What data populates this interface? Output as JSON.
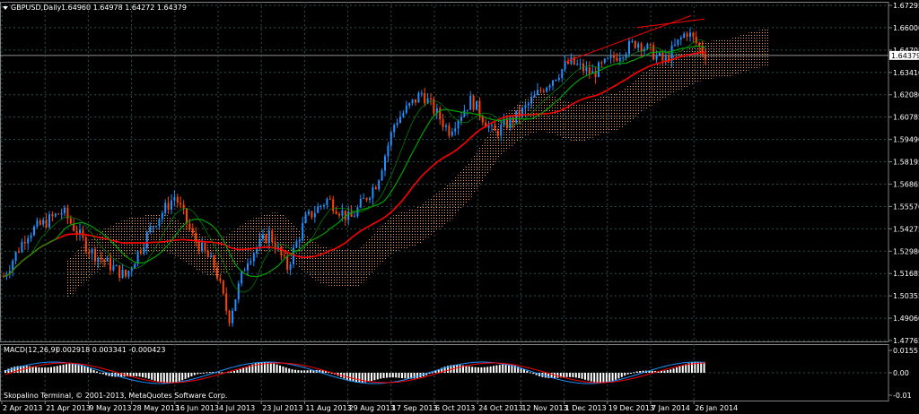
{
  "window": {
    "symbol_title": "GBPUSD,Daily",
    "ohlc": "1.64960 1.64978 1.64272 1.64379",
    "copyright": "Skopalino Terminal, © 2001-2013, MetaQuotes Software Corp."
  },
  "macd": {
    "title": "MACD(12,26,9)",
    "values": "0.002918 0.003341 -0.000423",
    "scale_labels": [
      "0.01551",
      "0.00",
      "-0.01"
    ]
  },
  "price_scale": {
    "labels": [
      "1.67295",
      "1.66000",
      "1.64705",
      "1.63410",
      "1.62080",
      "1.60785",
      "1.59490",
      "1.58195",
      "1.56865",
      "1.55570",
      "1.54275",
      "1.52980",
      "1.51685",
      "1.50355",
      "1.49060",
      "1.47765"
    ],
    "current_price": "1.64379"
  },
  "time_axis": {
    "labels": [
      "2 Apr 2013",
      "21 Apr 2013",
      "9 May 2013",
      "28 May 2013",
      "16 Jun 2013",
      "4 Jul 2013",
      "23 Jul 2013",
      "11 Aug 2013",
      "29 Aug 2013",
      "17 Sep 2013",
      "6 Oct 2013",
      "24 Oct 2013",
      "12 Nov 2013",
      "1 Dec 2013",
      "19 Dec 2013",
      "7 Jan 2014",
      "26 Jan 2014"
    ]
  },
  "colors": {
    "background": "#000000",
    "grid": "#2f4f4f",
    "bull_candle": "#1e90ff",
    "bear_candle": "#ff4500",
    "ma_slow": "#ff0000",
    "ma_fast": "#00a000",
    "ichimoku_cloud": "#f4a460",
    "macd_hist": "#ffffff"
  }
}
